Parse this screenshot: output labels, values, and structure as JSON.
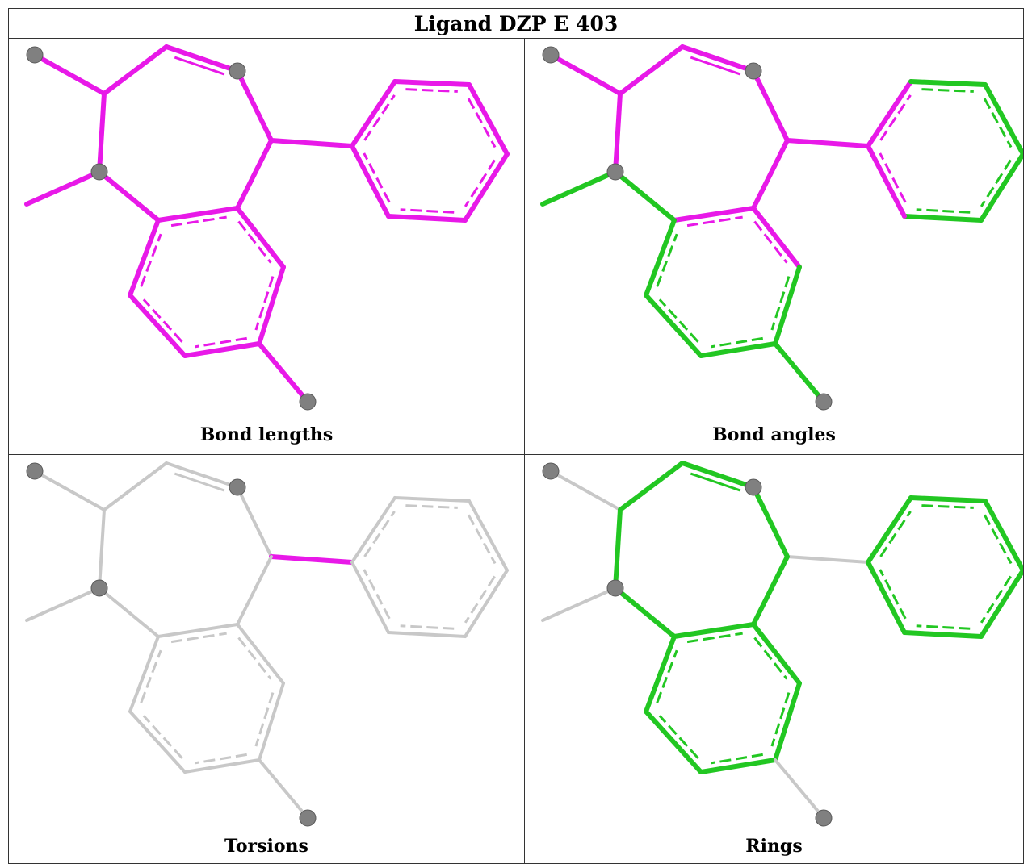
{
  "title": "Ligand DZP E 403",
  "colors": {
    "outlier": "#e819e8",
    "ok": "#22c722",
    "neutral": "#c8c8c8",
    "atom": "#808080"
  },
  "panels": [
    {
      "caption": "Bond lengths",
      "scheme": "lengths"
    },
    {
      "caption": "Bond angles",
      "scheme": "angles"
    },
    {
      "caption": "Torsions",
      "scheme": "torsions"
    },
    {
      "caption": "Rings",
      "scheme": "rings"
    }
  ]
}
